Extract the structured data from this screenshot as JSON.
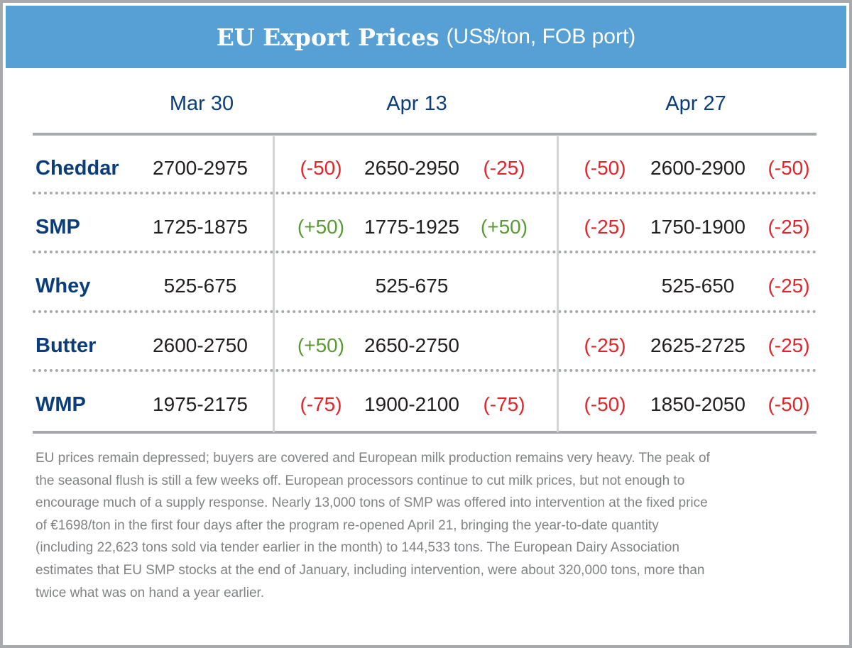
{
  "colors": {
    "header": "#57a0d6",
    "navy": "#0a3d7a",
    "negative": "#e0262b",
    "positive": "#5a9a32",
    "border": "#a7a9ac",
    "text_gray": "#808285"
  },
  "header": {
    "title": "EU Export Prices",
    "subtitle": "(US$/ton, FOB port)"
  },
  "chart_data": {
    "type": "table",
    "title": "EU Export Prices",
    "subtitle": "(US$/ton, FOB port)",
    "columns": [
      "Mar 30",
      "Apr 13",
      "Apr 27"
    ],
    "rows": [
      {
        "product": "Cheddar",
        "mar30": "2700-2975",
        "apr13_change_in": "(-50)",
        "apr13": "2650-2950",
        "apr13_change_out": "(-25)",
        "apr27_change_in": "(-50)",
        "apr27": "2600-2900",
        "apr27_change_out": "(-50)"
      },
      {
        "product": "SMP",
        "mar30": "1725-1875",
        "apr13_change_in": "(+50)",
        "apr13": "1775-1925",
        "apr13_change_out": "(+50)",
        "apr27_change_in": "(-25)",
        "apr27": "1750-1900",
        "apr27_change_out": "(-25)"
      },
      {
        "product": "Whey",
        "mar30": "525-675",
        "apr13_change_in": "",
        "apr13": "525-675",
        "apr13_change_out": "",
        "apr27_change_in": "",
        "apr27": "525-650",
        "apr27_change_out": "(-25)"
      },
      {
        "product": "Butter",
        "mar30": "2600-2750",
        "apr13_change_in": "(+50)",
        "apr13": "2650-2750",
        "apr13_change_out": "",
        "apr27_change_in": "(-25)",
        "apr27": "2625-2725",
        "apr27_change_out": "(-25)"
      },
      {
        "product": "WMP",
        "mar30": "1975-2175",
        "apr13_change_in": "(-75)",
        "apr13": "1900-2100",
        "apr13_change_out": "(-75)",
        "apr27_change_in": "(-50)",
        "apr27": "1850-2050",
        "apr27_change_out": "(-50)"
      }
    ]
  },
  "commentary": [
    "EU prices remain depressed; buyers are covered and European milk production remains very heavy. The peak of",
    "the seasonal flush is still a few weeks off. European processors continue to cut milk prices, but not enough to",
    "encourage much of a supply response. Nearly 13,000 tons of SMP was offered into intervention at the fixed price",
    "of €1698/ton in the first four days after the program re-opened April 21, bringing the year-to-date quantity",
    "(including 22,623 tons sold via tender earlier in the month) to 144,533 tons. The European Dairy Association",
    "estimates that EU SMP stocks at the end of January, including intervention, were about 320,000 tons, more than",
    "twice what was on hand a year earlier."
  ]
}
